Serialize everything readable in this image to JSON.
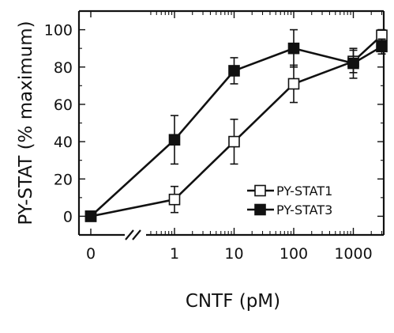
{
  "chart_data": {
    "type": "line",
    "xlabel": "CNTF (pM)",
    "ylabel": "PY-STAT (% maximum)",
    "x_tick_labels": [
      "0",
      "1",
      "10",
      "100",
      "1000"
    ],
    "y_tick_labels": [
      "0",
      "20",
      "40",
      "60",
      "80",
      "100"
    ],
    "x_scale": "log with broken axis at 0",
    "ylim": [
      -10,
      110
    ],
    "legend_position": "lower-right",
    "series": [
      {
        "name": "PY-STAT1",
        "marker": "open-square",
        "x": [
          0,
          1,
          10,
          100,
          1000,
          3000
        ],
        "y": [
          0,
          9,
          40,
          71,
          83,
          97
        ],
        "err": [
          0,
          7,
          12,
          10,
          6,
          3
        ]
      },
      {
        "name": "PY-STAT3",
        "marker": "filled-square",
        "x": [
          0,
          1,
          10,
          100,
          1000,
          3000
        ],
        "y": [
          0,
          41,
          78,
          90,
          82,
          91
        ],
        "err": [
          0,
          13,
          7,
          10,
          8,
          4
        ]
      }
    ]
  }
}
